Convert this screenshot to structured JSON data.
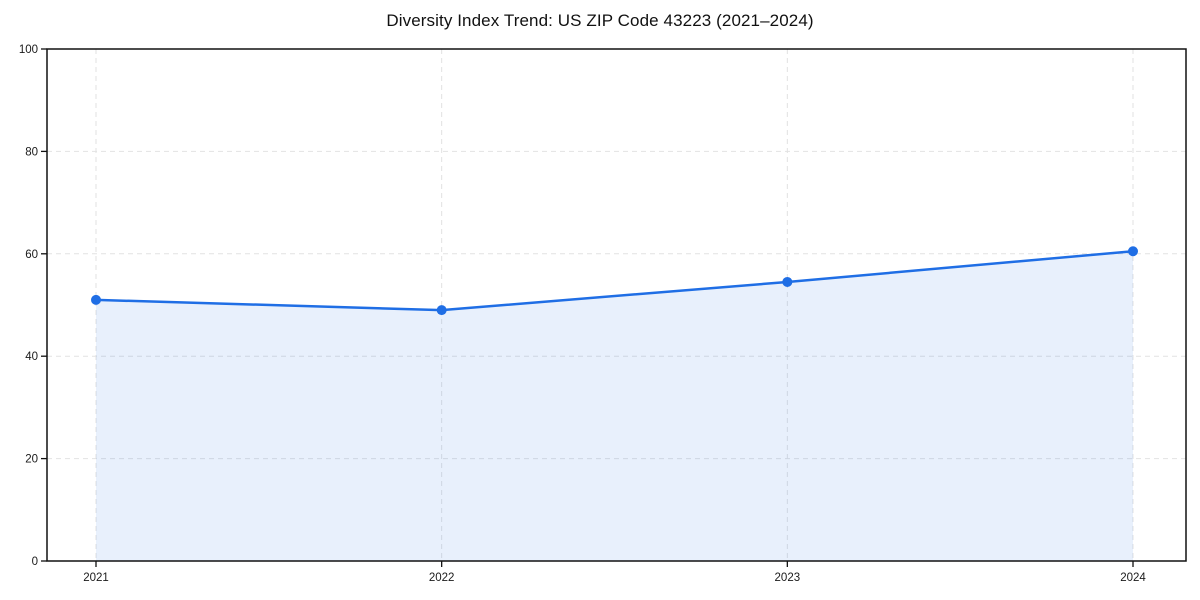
{
  "chart_data": {
    "type": "area",
    "title": "Diversity Index Trend: US ZIP Code 43223 (2021–2024)",
    "categories": [
      "2021",
      "2022",
      "2023",
      "2024"
    ],
    "series": [
      {
        "name": "Diversity Index",
        "values": [
          51,
          49,
          54.5,
          60.5
        ]
      }
    ],
    "xlabel": "",
    "ylabel": "",
    "ylim": [
      0,
      100
    ],
    "yticks": [
      0,
      20,
      40,
      60,
      80,
      100
    ],
    "grid": true,
    "legend_position": "none",
    "marker": "circle",
    "colors": {
      "line": "#1f6ee5",
      "marker": "#1f6ee5",
      "fill": "#1f6ee5",
      "fill_opacity": "0.1",
      "gridline": "#e2e2e2",
      "axis": "#111111",
      "tick_text": "#1a1a1a",
      "background": "#ffffff"
    }
  }
}
